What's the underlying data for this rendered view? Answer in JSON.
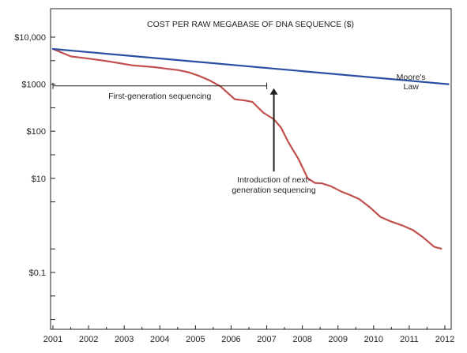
{
  "chart_data": {
    "type": "line",
    "title": "COST PER RAW MEGABASE OF DNA SEQUENCE ($)",
    "xlabel": "",
    "ylabel": "",
    "x_ticks": [
      "2001",
      "2002",
      "2003",
      "2004",
      "2005",
      "2006",
      "2007",
      "2008",
      "2009",
      "2010",
      "2011",
      "2012"
    ],
    "xlim": [
      2001,
      2012.1
    ],
    "y_scale": "log",
    "ylim": [
      0.005,
      20000
    ],
    "y_ticks": [
      {
        "value": 10000,
        "label": "$10,000"
      },
      {
        "value": 1000,
        "label": "$1000"
      },
      {
        "value": 100,
        "label": "$100"
      },
      {
        "value": 10,
        "label": "$10"
      },
      {
        "value": 0.1,
        "label": "$0.1"
      }
    ],
    "y_minor_ticks": [
      3162,
      316,
      31.6,
      3.16,
      0.316,
      0.0316,
      0.01
    ],
    "grid": false,
    "colors": {
      "cost": "#c0504d",
      "moore": "#2b4fa2",
      "axis": "#231f20"
    },
    "series": [
      {
        "name": "",
        "key": "cost",
        "x": [
          2001.0,
          2001.5,
          2002.0,
          2002.5,
          2002.8,
          2003.25,
          2003.85,
          2004.15,
          2004.5,
          2004.8,
          2005.1,
          2005.4,
          2005.7,
          2006.1,
          2006.4,
          2006.6,
          2006.9,
          2007.2,
          2007.4,
          2007.6,
          2007.9,
          2008.15,
          2008.35,
          2008.55,
          2008.8,
          2009.1,
          2009.35,
          2009.6,
          2009.9,
          2010.2,
          2010.5,
          2010.8,
          2011.1,
          2011.4,
          2011.7,
          2011.9
        ],
        "values": [
          5600,
          3900,
          3500,
          3100,
          2850,
          2500,
          2300,
          2150,
          2000,
          1800,
          1500,
          1200,
          900,
          480,
          450,
          420,
          250,
          180,
          120,
          60,
          25,
          10,
          8,
          7.8,
          6.8,
          5.2,
          4.4,
          3.6,
          2.4,
          1.5,
          1.2,
          1.0,
          0.8,
          0.55,
          0.35,
          0.32
        ]
      },
      {
        "name": "Moore's Law",
        "key": "moore",
        "x": [
          2001.0,
          2012.1
        ],
        "values": [
          5600,
          1000
        ]
      }
    ],
    "annotations": {
      "first_generation": {
        "label": "First-generation sequencing",
        "x_start": 2001.0,
        "x_end": 2007.0,
        "y": 920
      },
      "next_generation": {
        "lines": [
          "Introduction of next-",
          "generation sequencing"
        ],
        "x": 2007.2,
        "y_arrow_tip": 820,
        "y_arrow_base": 14
      },
      "moore_label": {
        "lines": [
          "Moore's",
          "Law"
        ],
        "x": 2011.05,
        "y": 1250
      }
    }
  }
}
